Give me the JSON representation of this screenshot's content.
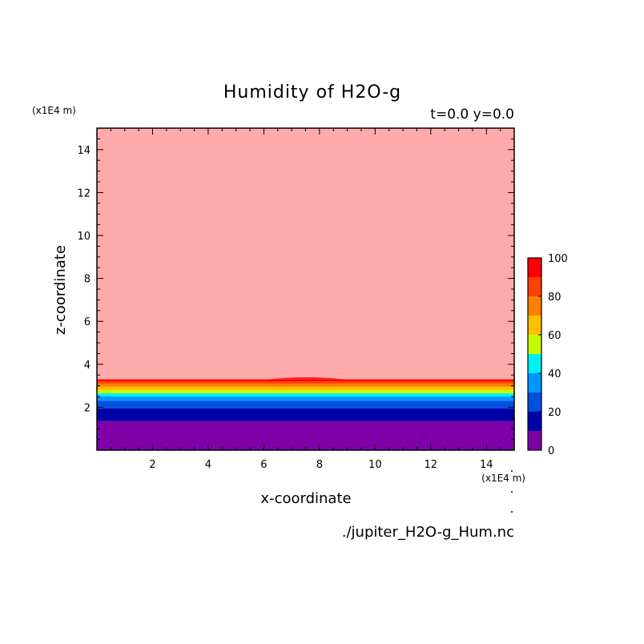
{
  "chart_data": {
    "type": "heatmap",
    "title": "Humidity of H2O-g",
    "time_label": "t=0.0 y=0.0",
    "xlabel": "x-coordinate",
    "ylabel": "z-coordinate",
    "x_unit": "(x1E4 m)",
    "y_unit": "(x1E4 m)",
    "source_file": "./jupiter_H2O-g_Hum.nc",
    "xlim": [
      0,
      15
    ],
    "ylim": [
      0,
      15
    ],
    "x_ticks": [
      2,
      4,
      6,
      8,
      10,
      12,
      14
    ],
    "y_ticks": [
      2,
      4,
      6,
      8,
      10,
      12,
      14
    ],
    "colorbar": {
      "range": [
        0,
        100
      ],
      "tick_labels": [
        0,
        20,
        40,
        60,
        80,
        100
      ],
      "levels": [
        0,
        10,
        20,
        30,
        40,
        50,
        60,
        70,
        80,
        90,
        100
      ],
      "colors": [
        "#7f00a8",
        "#0000a8",
        "#0050e0",
        "#0096ff",
        "#00f0ff",
        "#c8ff00",
        "#ffc000",
        "#ff8000",
        "#ff4000",
        "#ff0000",
        "#ffaaaa"
      ]
    },
    "bands": [
      {
        "z_from": 0.0,
        "z_to": 1.35,
        "value": 5
      },
      {
        "z_from": 1.35,
        "z_to": 1.95,
        "value": 15
      },
      {
        "z_from": 1.95,
        "z_to": 2.3,
        "value": 25
      },
      {
        "z_from": 2.3,
        "z_to": 2.5,
        "value": 35
      },
      {
        "z_from": 2.5,
        "z_to": 2.65,
        "value": 45
      },
      {
        "z_from": 2.65,
        "z_to": 2.8,
        "value": 55
      },
      {
        "z_from": 2.8,
        "z_to": 2.95,
        "value": 65
      },
      {
        "z_from": 2.95,
        "z_to": 3.1,
        "value": 75
      },
      {
        "z_from": 3.1,
        "z_to": 3.2,
        "value": 85
      },
      {
        "z_from": 3.2,
        "z_to": 3.3,
        "value": 95
      },
      {
        "z_from": 3.3,
        "z_to": 15.0,
        "value": 100
      }
    ]
  }
}
